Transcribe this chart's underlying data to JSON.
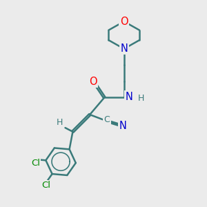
{
  "bg_color": "#ebebeb",
  "bond_color": "#3a7a7a",
  "bond_lw": 1.8,
  "dbo": 0.055,
  "atom_colors": {
    "O": "#ff0000",
    "N": "#0000cc",
    "Cl": "#008800",
    "C": "#3a7a7a",
    "H": "#3a7a7a"
  },
  "font_size": 9.5,
  "fig_size": [
    3.0,
    3.0
  ],
  "dpi": 100,
  "xlim": [
    -1,
    11
  ],
  "ylim": [
    -1,
    11
  ]
}
